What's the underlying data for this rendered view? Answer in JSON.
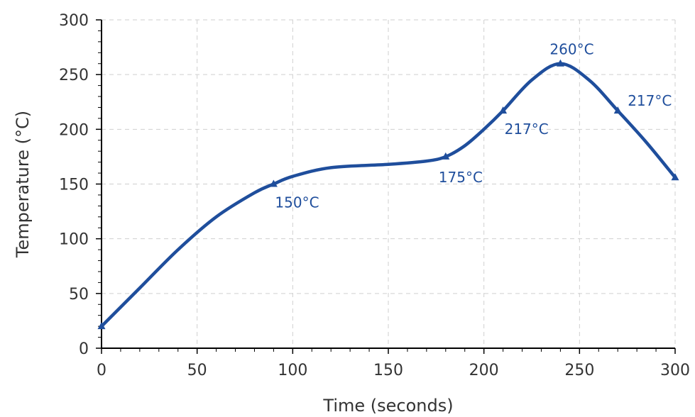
{
  "chart_data": {
    "type": "line",
    "title": "",
    "xlabel": "Time (seconds)",
    "ylabel": "Temperature (°C)",
    "xlim": [
      0,
      300
    ],
    "ylim": [
      0,
      300
    ],
    "x_ticks": [
      0,
      50,
      100,
      150,
      200,
      250,
      300
    ],
    "y_ticks": [
      0,
      50,
      100,
      150,
      200,
      250,
      300
    ],
    "grid": true,
    "line_color": "#1f4e9c",
    "series": [
      {
        "points": [
          [
            0,
            20
          ],
          [
            20,
            55
          ],
          [
            40,
            90
          ],
          [
            60,
            120
          ],
          [
            80,
            142
          ],
          [
            90,
            150
          ],
          [
            100,
            157
          ],
          [
            120,
            165
          ],
          [
            150,
            168
          ],
          [
            170,
            171
          ],
          [
            180,
            175
          ],
          [
            190,
            185
          ],
          [
            200,
            200
          ],
          [
            210,
            217
          ],
          [
            225,
            245
          ],
          [
            240,
            260
          ],
          [
            255,
            245
          ],
          [
            270,
            217
          ],
          [
            285,
            188
          ],
          [
            300,
            156
          ]
        ]
      }
    ],
    "markers": [
      {
        "x": 0,
        "y": 20
      },
      {
        "x": 90,
        "y": 150
      },
      {
        "x": 180,
        "y": 175
      },
      {
        "x": 210,
        "y": 217
      },
      {
        "x": 240,
        "y": 260
      },
      {
        "x": 270,
        "y": 217
      },
      {
        "x": 300,
        "y": 156
      }
    ],
    "annotations": [
      {
        "text": "150°C",
        "x": 90,
        "y": 150,
        "placement": "below-right"
      },
      {
        "text": "175°C",
        "x": 180,
        "y": 175,
        "placement": "below"
      },
      {
        "text": "217°C",
        "x": 210,
        "y": 217,
        "placement": "below-right"
      },
      {
        "text": "260°C",
        "x": 240,
        "y": 260,
        "placement": "above"
      },
      {
        "text": "217°C",
        "x": 270,
        "y": 217,
        "placement": "above-right"
      }
    ]
  }
}
